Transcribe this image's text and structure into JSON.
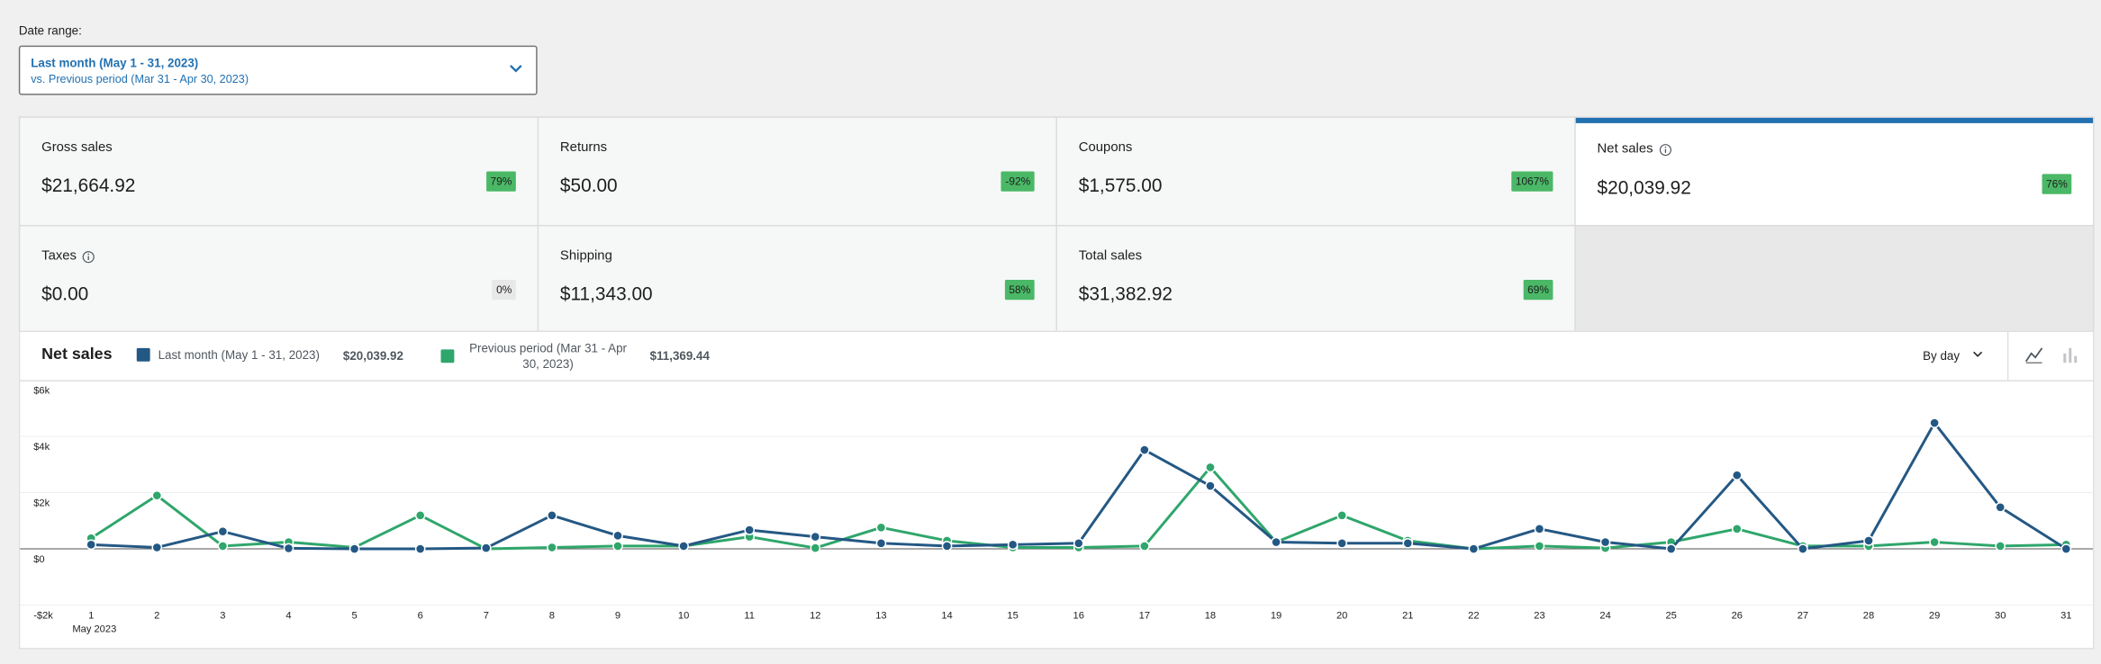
{
  "date_range": {
    "label": "Date range:",
    "primary": "Last month (May 1 - 31, 2023)",
    "secondary": "vs. Previous period (Mar 31 - Apr 30, 2023)"
  },
  "summary": [
    {
      "label": "Gross sales",
      "value": "$21,664.92",
      "delta": "79%"
    },
    {
      "label": "Returns",
      "value": "$50.00",
      "delta": "-92%"
    },
    {
      "label": "Coupons",
      "value": "$1,575.00",
      "delta": "1067%"
    },
    {
      "label": "Net sales",
      "value": "$20,039.92",
      "delta": "76%"
    },
    {
      "label": "Taxes",
      "value": "$0.00",
      "delta": "0%"
    },
    {
      "label": "Shipping",
      "value": "$11,343.00",
      "delta": "58%"
    },
    {
      "label": "Total sales",
      "value": "$31,382.92",
      "delta": "69%"
    }
  ],
  "chart_data": {
    "type": "line",
    "title": "Net sales",
    "interval": "By day",
    "x_caption": "May 2023",
    "categories": [
      "1",
      "2",
      "3",
      "4",
      "5",
      "6",
      "7",
      "8",
      "9",
      "10",
      "11",
      "12",
      "13",
      "14",
      "15",
      "16",
      "17",
      "18",
      "19",
      "20",
      "21",
      "22",
      "23",
      "24",
      "25",
      "26",
      "27",
      "28",
      "29",
      "30",
      "31"
    ],
    "series": [
      {
        "name": "Last month (May 1 - 31, 2023)",
        "total": "$20,039.92",
        "color": "#245884",
        "values": [
          150,
          50,
          620,
          20,
          0,
          0,
          30,
          1190,
          470,
          100,
          670,
          430,
          200,
          100,
          150,
          200,
          3520,
          2240,
          240,
          200,
          200,
          0,
          710,
          240,
          0,
          2620,
          0,
          290,
          4480,
          1480,
          0
        ]
      },
      {
        "name": "Previous period (Mar 31 - Apr 30, 2023)",
        "total": "$11,369.44",
        "color": "#2fa66b",
        "values": [
          380,
          1900,
          100,
          240,
          50,
          1190,
          0,
          50,
          100,
          100,
          430,
          30,
          760,
          290,
          50,
          50,
          100,
          2900,
          240,
          1190,
          290,
          0,
          100,
          30,
          240,
          710,
          100,
          100,
          240,
          100,
          150
        ]
      }
    ],
    "ylim": [
      -2000,
      6000
    ],
    "yticks": [
      {
        "value": -2000,
        "label": "-$2k"
      },
      {
        "value": 0,
        "label": "$0"
      },
      {
        "value": 2000,
        "label": "$2k"
      },
      {
        "value": 4000,
        "label": "$4k"
      },
      {
        "value": 6000,
        "label": "$6k"
      }
    ]
  }
}
